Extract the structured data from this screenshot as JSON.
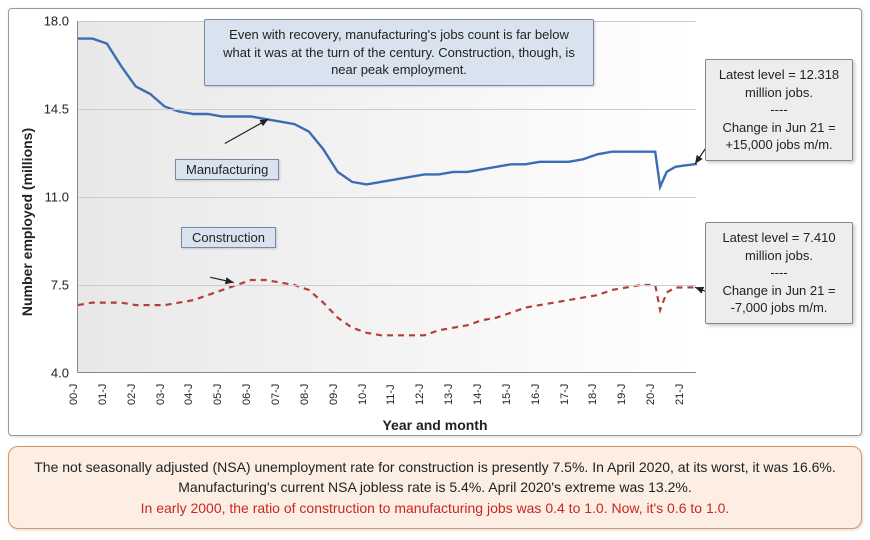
{
  "chart": {
    "type": "line",
    "y_label": "Number employed (millions)",
    "x_label": "Year and month",
    "ylim": [
      4.0,
      18.0
    ],
    "y_ticks": [
      4.0,
      7.5,
      11.0,
      14.5,
      18.0
    ],
    "y_tick_labels": [
      "4.0",
      "7.5",
      "11.0",
      "14.5",
      "18.0"
    ],
    "x_ticks": [
      "00-J",
      "01-J",
      "02-J",
      "03-J",
      "04-J",
      "05-J",
      "06-J",
      "07-J",
      "08-J",
      "09-J",
      "10-J",
      "11-J",
      "12-J",
      "13-J",
      "14-J",
      "15-J",
      "16-J",
      "17-J",
      "18-J",
      "19-J",
      "20-J",
      "21-J"
    ],
    "background_gradient": [
      "#e8e8e8",
      "#ffffff"
    ],
    "grid_color": "#cccccc",
    "series": {
      "manufacturing": {
        "label": "Manufacturing",
        "color": "#3b6db5",
        "stroke_width": 2.4,
        "dash": "none",
        "data": [
          [
            0,
            17.3
          ],
          [
            0.5,
            17.3
          ],
          [
            1,
            17.1
          ],
          [
            1.5,
            16.2
          ],
          [
            2,
            15.4
          ],
          [
            2.5,
            15.1
          ],
          [
            3,
            14.6
          ],
          [
            3.5,
            14.4
          ],
          [
            4,
            14.3
          ],
          [
            4.5,
            14.3
          ],
          [
            5,
            14.2
          ],
          [
            5.5,
            14.2
          ],
          [
            6,
            14.2
          ],
          [
            6.5,
            14.1
          ],
          [
            7,
            14.0
          ],
          [
            7.5,
            13.9
          ],
          [
            8,
            13.6
          ],
          [
            8.5,
            12.9
          ],
          [
            9,
            12.0
          ],
          [
            9.5,
            11.6
          ],
          [
            10,
            11.5
          ],
          [
            10.5,
            11.6
          ],
          [
            11,
            11.7
          ],
          [
            11.5,
            11.8
          ],
          [
            12,
            11.9
          ],
          [
            12.5,
            11.9
          ],
          [
            13,
            12.0
          ],
          [
            13.5,
            12.0
          ],
          [
            14,
            12.1
          ],
          [
            14.5,
            12.2
          ],
          [
            15,
            12.3
          ],
          [
            15.5,
            12.3
          ],
          [
            16,
            12.4
          ],
          [
            16.5,
            12.4
          ],
          [
            17,
            12.4
          ],
          [
            17.5,
            12.5
          ],
          [
            18,
            12.7
          ],
          [
            18.5,
            12.8
          ],
          [
            19,
            12.8
          ],
          [
            19.5,
            12.8
          ],
          [
            20,
            12.8
          ],
          [
            20.17,
            11.4
          ],
          [
            20.4,
            12.0
          ],
          [
            20.7,
            12.2
          ],
          [
            21,
            12.25
          ],
          [
            21.45,
            12.318
          ]
        ]
      },
      "construction": {
        "label": "Construction",
        "color": "#b43e3a",
        "stroke_width": 2.2,
        "dash": "6,5",
        "data": [
          [
            0,
            6.7
          ],
          [
            0.5,
            6.8
          ],
          [
            1,
            6.8
          ],
          [
            1.5,
            6.8
          ],
          [
            2,
            6.7
          ],
          [
            2.5,
            6.7
          ],
          [
            3,
            6.7
          ],
          [
            3.5,
            6.8
          ],
          [
            4,
            6.9
          ],
          [
            4.5,
            7.1
          ],
          [
            5,
            7.3
          ],
          [
            5.5,
            7.5
          ],
          [
            6,
            7.7
          ],
          [
            6.5,
            7.7
          ],
          [
            7,
            7.6
          ],
          [
            7.5,
            7.5
          ],
          [
            8,
            7.3
          ],
          [
            8.5,
            6.8
          ],
          [
            9,
            6.2
          ],
          [
            9.5,
            5.8
          ],
          [
            10,
            5.6
          ],
          [
            10.5,
            5.5
          ],
          [
            11,
            5.5
          ],
          [
            11.5,
            5.5
          ],
          [
            12,
            5.5
          ],
          [
            12.5,
            5.7
          ],
          [
            13,
            5.8
          ],
          [
            13.5,
            5.9
          ],
          [
            14,
            6.1
          ],
          [
            14.5,
            6.2
          ],
          [
            15,
            6.4
          ],
          [
            15.5,
            6.6
          ],
          [
            16,
            6.7
          ],
          [
            16.5,
            6.8
          ],
          [
            17,
            6.9
          ],
          [
            17.5,
            7.0
          ],
          [
            18,
            7.1
          ],
          [
            18.5,
            7.3
          ],
          [
            19,
            7.4
          ],
          [
            19.5,
            7.5
          ],
          [
            20,
            7.5
          ],
          [
            20.17,
            6.5
          ],
          [
            20.4,
            7.2
          ],
          [
            20.7,
            7.4
          ],
          [
            21,
            7.4
          ],
          [
            21.45,
            7.41
          ]
        ]
      }
    },
    "title_box": {
      "text": "Even with recovery, manufacturing's jobs count is far below what it was at the turn of the century. Construction, though, is near peak employment.",
      "bg": "#d9e3f0",
      "border": "#7a8aa3"
    },
    "stat_boxes": {
      "manufacturing": {
        "line1": "Latest level = 12.318 million jobs.",
        "divider": "----",
        "line2": "Change in Jun 21 = +15,000 jobs m/m."
      },
      "construction": {
        "line1": "Latest level = 7.410 million jobs.",
        "divider": "----",
        "line2": "Change in Jun 21 = -7,000 jobs m/m."
      }
    },
    "series_label_colors": {
      "bg": "#d9e3f0",
      "border": "#7a8aa3"
    }
  },
  "bottom_note": {
    "line1": "The not seasonally adjusted (NSA) unemployment rate for construction is presently 7.5%. In April 2020, at its worst, it was 16.6%. Manufacturing's current NSA jobless rate is 5.4%. April 2020's extreme was 13.2%.",
    "line2": "In early 2000, the ratio of construction to manufacturing jobs was 0.4 to 1.0. Now, it's 0.6 to 1.0.",
    "bg": "#fceee3",
    "border": "#d6995f",
    "highlight_color": "#c82820"
  }
}
